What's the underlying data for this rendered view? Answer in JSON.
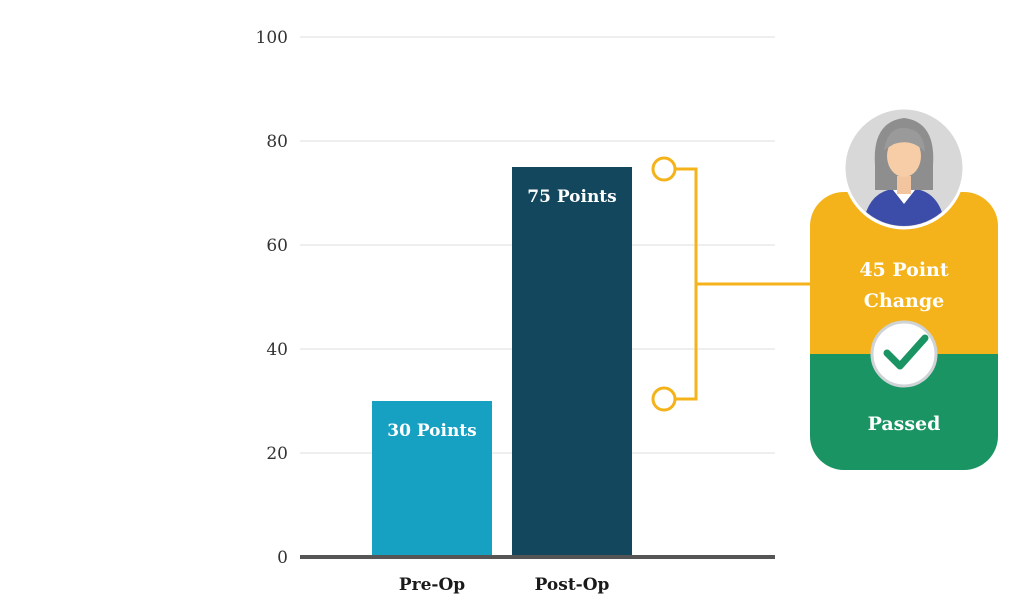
{
  "chart_data": {
    "type": "bar",
    "categories": [
      "Pre-Op",
      "Post-Op"
    ],
    "values": [
      30,
      75
    ],
    "data_labels": [
      "30 Points",
      "75 Points"
    ],
    "ylim": [
      0,
      100
    ],
    "yticks": [
      0,
      20,
      40,
      60,
      80,
      100
    ],
    "grid": true,
    "colors": [
      "#16a1c2",
      "#12475d"
    ],
    "axis_color": "#555555",
    "grid_color": "#dedede"
  },
  "annotation": {
    "change_text_line1": "45 Point",
    "change_text_line2": "Change",
    "status_text": "Passed",
    "bracket_color": "#f4b31a",
    "card_top_color": "#f4b31a",
    "card_bottom_color": "#1a9463",
    "check_color": "#1a9463",
    "icons": [
      "person-avatar-icon",
      "checkmark-icon"
    ]
  }
}
